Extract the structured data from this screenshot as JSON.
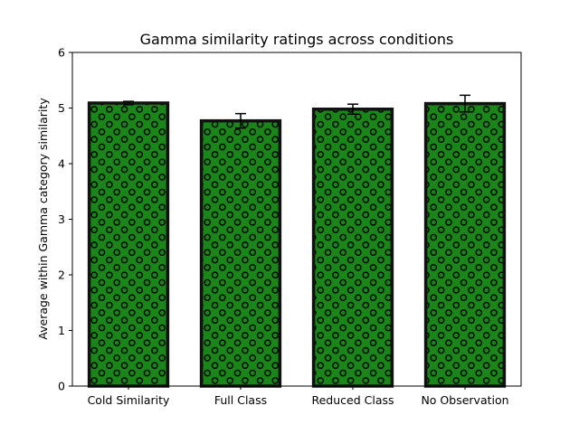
{
  "chart_data": {
    "type": "bar",
    "title": "Gamma similarity ratings across conditions",
    "xlabel": "",
    "ylabel": "Average within Gamma category similarity",
    "categories": [
      "Cold Similarity",
      "Full Class",
      "Reduced Class",
      "No Observation"
    ],
    "values": [
      5.09,
      4.77,
      4.98,
      5.08
    ],
    "errors": [
      0.03,
      0.13,
      0.09,
      0.15
    ],
    "ylim": [
      0,
      6
    ],
    "yticks": [
      "0",
      "1",
      "2",
      "3",
      "4",
      "5",
      "6"
    ],
    "grid": false,
    "legend": "none",
    "bar_color": "#1a8518",
    "edge_color": "#111111",
    "hatch": "circles"
  }
}
